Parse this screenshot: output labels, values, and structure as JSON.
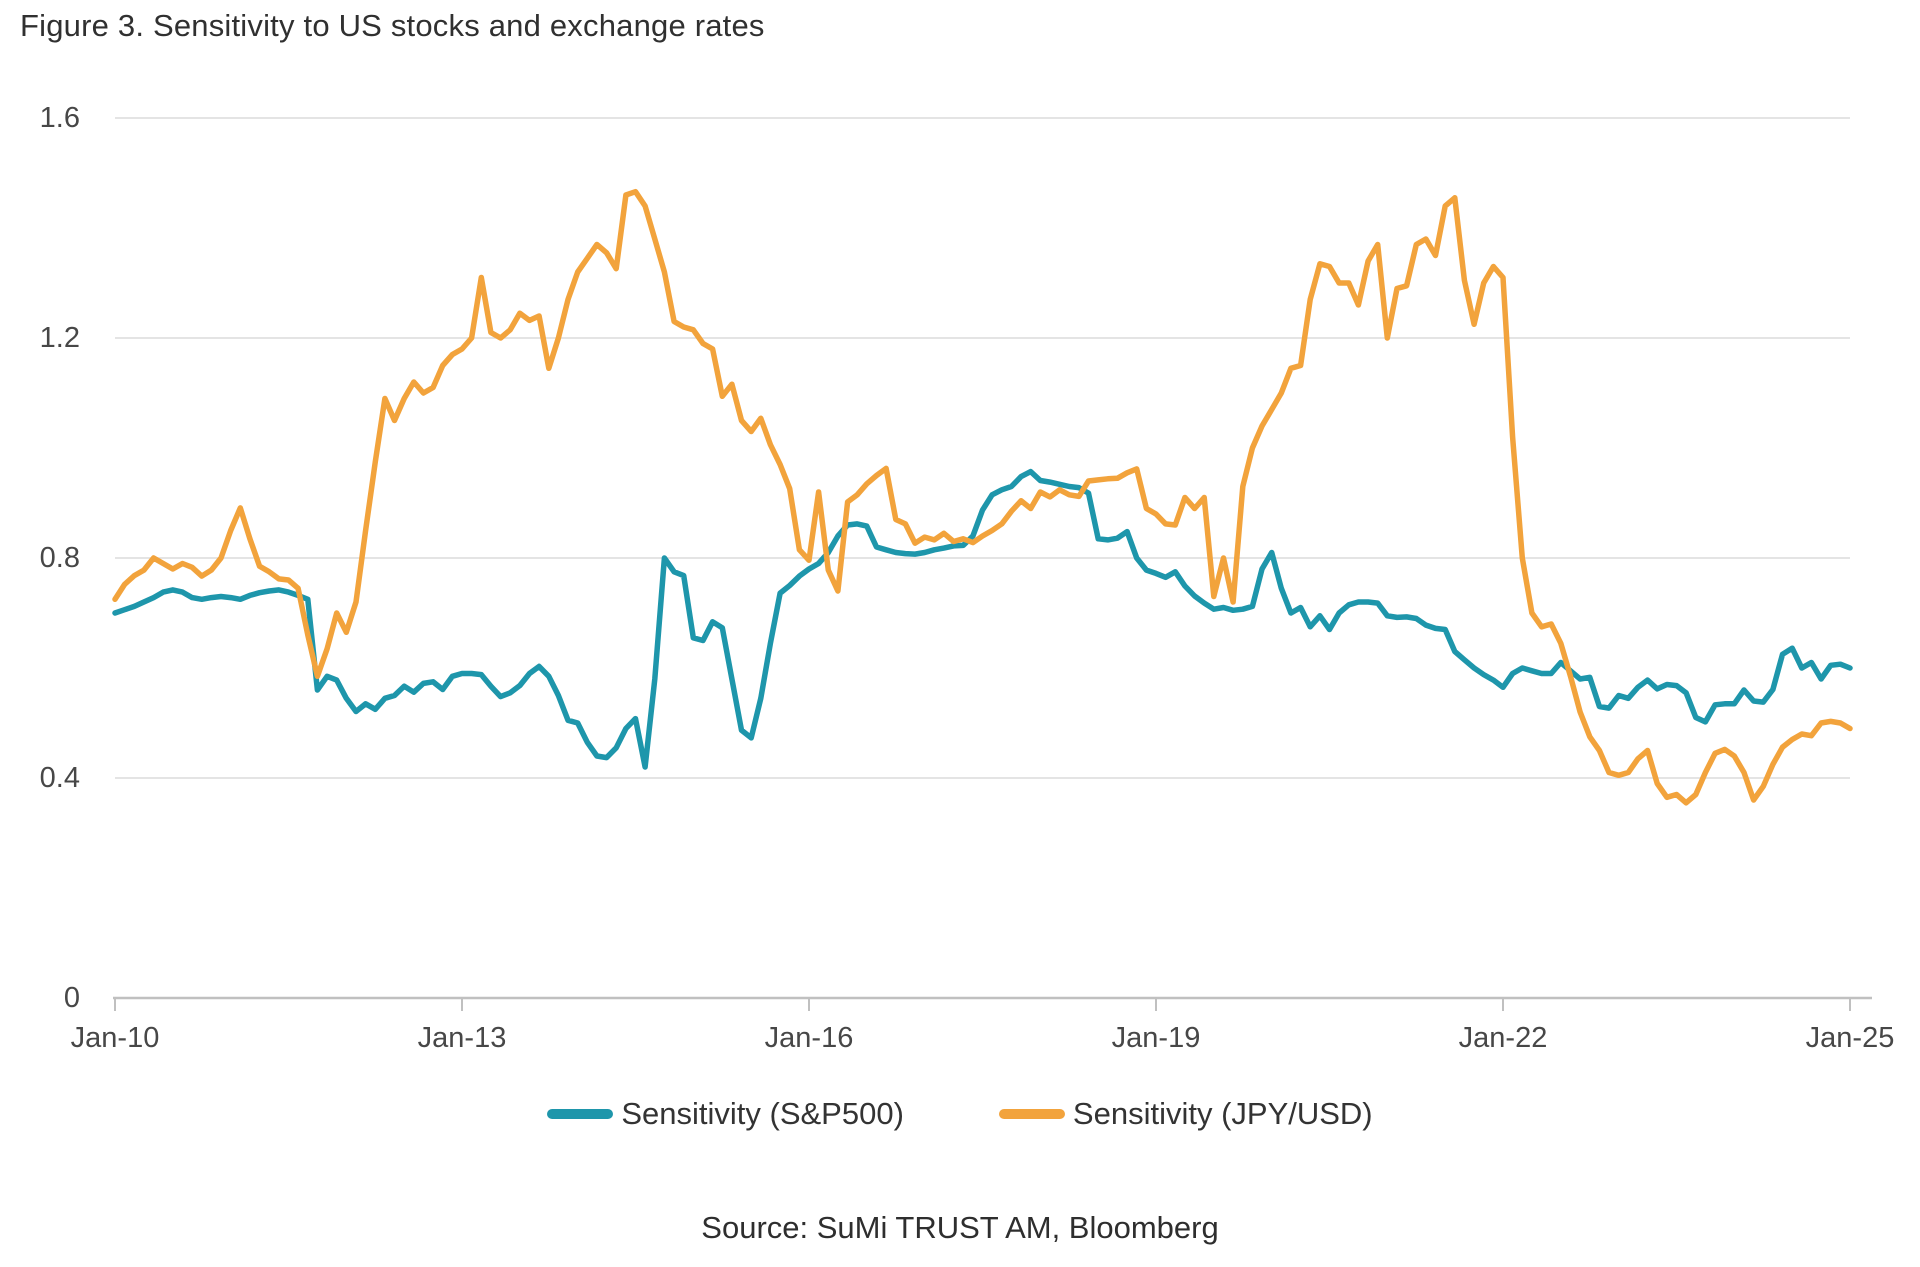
{
  "figure": {
    "title": "Figure 3. Sensitivity to US stocks and exchange rates",
    "source": "Source: SuMi TRUST AM, Bloomberg"
  },
  "colors": {
    "sp500_line": "#1E96AB",
    "jpyusd_line": "#F2A33C",
    "gridline": "#DBDBDB",
    "axis_line": "#C0C0C0",
    "text_dark": "#303030",
    "text_axis": "#474747",
    "background": "#FFFFFF"
  },
  "chart_data": {
    "type": "line",
    "title": "Figure 3. Sensitivity to US stocks and exchange rates",
    "xlabel": "",
    "ylabel": "",
    "x_start": "Jan-2010",
    "x_end": "Jan-2025",
    "x_frequency": "monthly",
    "x_tick_labels": [
      "Jan-10",
      "Jan-13",
      "Jan-16",
      "Jan-19",
      "Jan-22",
      "Jan-25"
    ],
    "x_tick_month_index": [
      0,
      36,
      72,
      108,
      144,
      180
    ],
    "y_tick_labels": [
      "1.6",
      "1.2",
      "0.8",
      "0.4",
      "0"
    ],
    "y_tick_values": [
      1.6,
      1.2,
      0.8,
      0.4,
      0
    ],
    "ylim": [
      0,
      1.6
    ],
    "grid": "horizontal",
    "legend_position": "bottom",
    "series": [
      {
        "name": "Sensitivity (S&P500)",
        "color": "#1E96AB",
        "values": [
          0.7,
          0.706,
          0.712,
          0.72,
          0.728,
          0.738,
          0.742,
          0.738,
          0.728,
          0.725,
          0.728,
          0.73,
          0.728,
          0.725,
          0.732,
          0.737,
          0.74,
          0.742,
          0.738,
          0.732,
          0.725,
          0.56,
          0.585,
          0.578,
          0.545,
          0.521,
          0.535,
          0.525,
          0.545,
          0.55,
          0.567,
          0.556,
          0.572,
          0.575,
          0.561,
          0.585,
          0.59,
          0.59,
          0.588,
          0.567,
          0.548,
          0.555,
          0.568,
          0.59,
          0.603,
          0.585,
          0.55,
          0.505,
          0.5,
          0.465,
          0.44,
          0.437,
          0.455,
          0.49,
          0.508,
          0.42,
          0.58,
          0.8,
          0.775,
          0.768,
          0.655,
          0.65,
          0.684,
          0.673,
          0.58,
          0.487,
          0.473,
          0.545,
          0.645,
          0.736,
          0.75,
          0.767,
          0.78,
          0.79,
          0.81,
          0.84,
          0.86,
          0.862,
          0.858,
          0.82,
          0.815,
          0.81,
          0.808,
          0.807,
          0.81,
          0.815,
          0.818,
          0.822,
          0.823,
          0.84,
          0.887,
          0.915,
          0.924,
          0.93,
          0.948,
          0.957,
          0.941,
          0.938,
          0.934,
          0.93,
          0.928,
          0.918,
          0.835,
          0.833,
          0.836,
          0.848,
          0.8,
          0.778,
          0.772,
          0.765,
          0.775,
          0.749,
          0.731,
          0.718,
          0.707,
          0.71,
          0.705,
          0.707,
          0.712,
          0.78,
          0.81,
          0.745,
          0.7,
          0.71,
          0.675,
          0.695,
          0.67,
          0.7,
          0.715,
          0.72,
          0.72,
          0.718,
          0.695,
          0.692,
          0.693,
          0.69,
          0.678,
          0.672,
          0.67,
          0.63,
          0.615,
          0.6,
          0.588,
          0.578,
          0.565,
          0.59,
          0.6,
          0.595,
          0.59,
          0.59,
          0.61,
          0.595,
          0.58,
          0.583,
          0.53,
          0.527,
          0.55,
          0.545,
          0.565,
          0.578,
          0.562,
          0.57,
          0.568,
          0.555,
          0.51,
          0.502,
          0.533,
          0.535,
          0.535,
          0.56,
          0.54,
          0.538,
          0.561,
          0.625,
          0.636,
          0.6,
          0.61,
          0.58,
          0.605,
          0.607,
          0.6
        ]
      },
      {
        "name": "Sensitivity (JPY/USD)",
        "color": "#F2A33C",
        "values": [
          0.725,
          0.752,
          0.768,
          0.778,
          0.8,
          0.79,
          0.78,
          0.79,
          0.783,
          0.767,
          0.778,
          0.8,
          0.85,
          0.891,
          0.835,
          0.785,
          0.775,
          0.762,
          0.76,
          0.745,
          0.66,
          0.585,
          0.635,
          0.7,
          0.665,
          0.72,
          0.85,
          0.975,
          1.09,
          1.05,
          1.09,
          1.12,
          1.1,
          1.11,
          1.15,
          1.17,
          1.18,
          1.2,
          1.31,
          1.21,
          1.2,
          1.215,
          1.245,
          1.232,
          1.24,
          1.145,
          1.2,
          1.27,
          1.32,
          1.345,
          1.37,
          1.355,
          1.326,
          1.46,
          1.466,
          1.44,
          1.38,
          1.32,
          1.23,
          1.22,
          1.215,
          1.19,
          1.18,
          1.094,
          1.116,
          1.05,
          1.03,
          1.054,
          1.006,
          0.97,
          0.926,
          0.815,
          0.796,
          0.92,
          0.778,
          0.74,
          0.902,
          0.915,
          0.935,
          0.95,
          0.963,
          0.87,
          0.862,
          0.827,
          0.838,
          0.833,
          0.845,
          0.83,
          0.835,
          0.828,
          0.84,
          0.85,
          0.862,
          0.885,
          0.904,
          0.89,
          0.92,
          0.911,
          0.924,
          0.915,
          0.912,
          0.94,
          0.942,
          0.944,
          0.945,
          0.955,
          0.962,
          0.89,
          0.88,
          0.862,
          0.86,
          0.91,
          0.89,
          0.91,
          0.73,
          0.8,
          0.72,
          0.93,
          1.0,
          1.04,
          1.07,
          1.1,
          1.145,
          1.15,
          1.27,
          1.335,
          1.33,
          1.3,
          1.3,
          1.26,
          1.34,
          1.37,
          1.2,
          1.29,
          1.295,
          1.37,
          1.38,
          1.35,
          1.44,
          1.455,
          1.305,
          1.225,
          1.3,
          1.33,
          1.31,
          1.02,
          0.8,
          0.7,
          0.675,
          0.68,
          0.645,
          0.585,
          0.52,
          0.475,
          0.45,
          0.41,
          0.405,
          0.41,
          0.435,
          0.45,
          0.39,
          0.365,
          0.37,
          0.355,
          0.37,
          0.41,
          0.445,
          0.452,
          0.44,
          0.41,
          0.36,
          0.385,
          0.425,
          0.456,
          0.47,
          0.48,
          0.477,
          0.5,
          0.503,
          0.5,
          0.49
        ]
      }
    ]
  }
}
